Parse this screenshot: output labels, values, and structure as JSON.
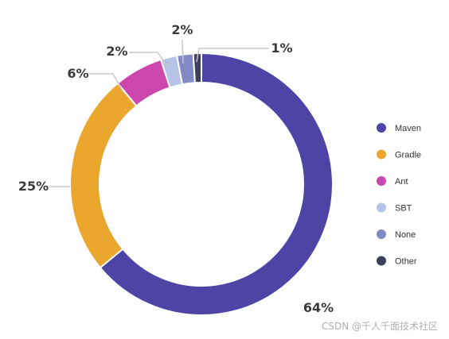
{
  "chart_data": {
    "type": "pie",
    "variant": "donut",
    "categories": [
      "Maven",
      "Gradle",
      "Ant",
      "SBT",
      "None",
      "Other"
    ],
    "values": [
      64,
      25,
      6,
      2,
      2,
      1
    ],
    "labels": [
      "64%",
      "25%",
      "6%",
      "2%",
      "2%",
      "1%"
    ],
    "colors": [
      "#4e44a6",
      "#eba62e",
      "#cc47ad",
      "#b7c3e6",
      "#8289c4",
      "#3d3f5c"
    ],
    "legend_position": "right"
  },
  "watermark": "CSDN @千人千面技术社区"
}
